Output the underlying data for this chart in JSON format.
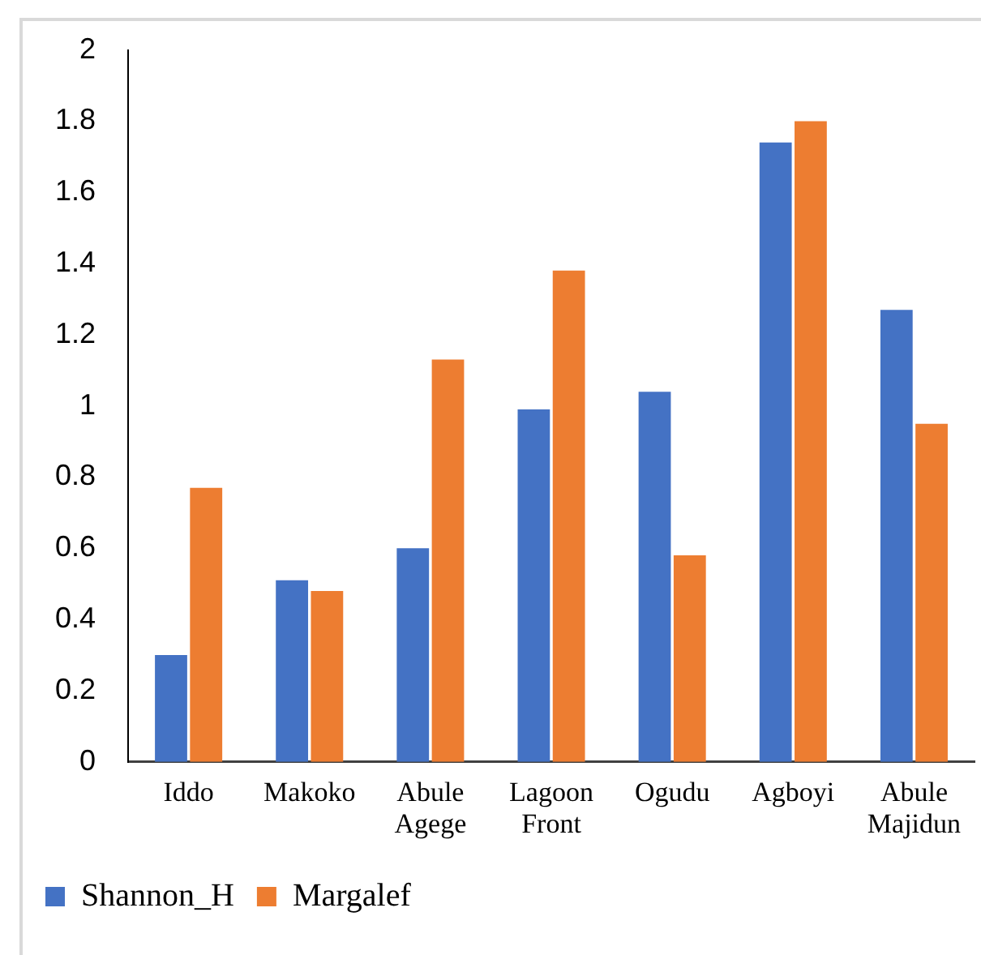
{
  "chart_data": {
    "type": "bar",
    "categories": [
      "Iddo",
      "Makoko",
      "Abule Agege",
      "Lagoon Front",
      "Ogudu",
      "Agboyi",
      "Abule Majidun"
    ],
    "series": [
      {
        "name": "Shannon_H",
        "color": "#4472c4",
        "values": [
          0.3,
          0.51,
          0.6,
          0.99,
          1.04,
          1.74,
          1.27
        ]
      },
      {
        "name": "Margalef",
        "color": "#ed7d31",
        "values": [
          0.77,
          0.48,
          1.13,
          1.38,
          0.58,
          1.8,
          0.95
        ]
      }
    ],
    "ylim": [
      0,
      2
    ],
    "yticks": [
      0,
      0.2,
      0.4,
      0.6,
      0.8,
      1,
      1.2,
      1.4,
      1.6,
      1.8,
      2
    ],
    "grid": false,
    "legend": "bottom"
  }
}
